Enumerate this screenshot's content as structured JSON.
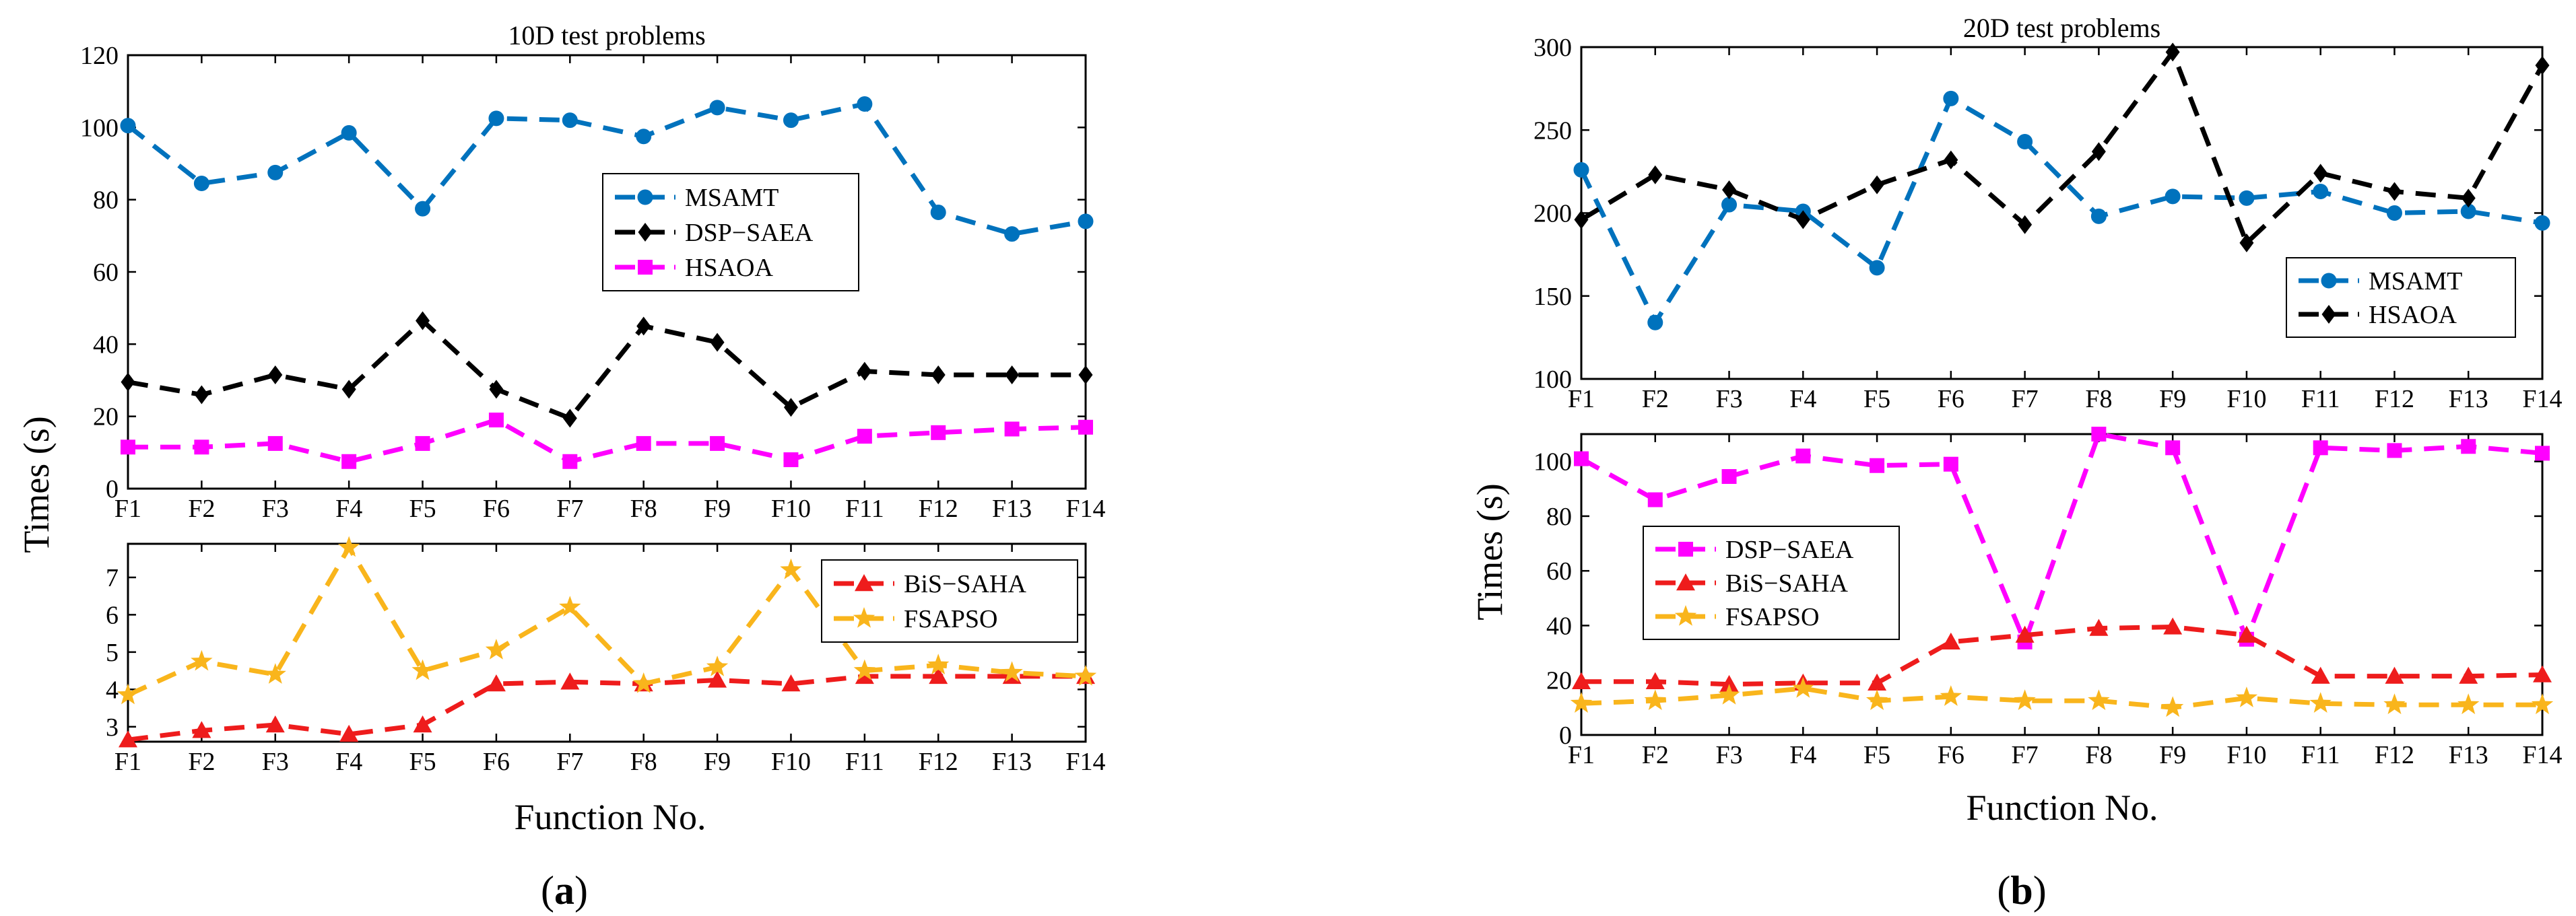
{
  "figure": {
    "shared_categories": [
      "F1",
      "F2",
      "F3",
      "F4",
      "F5",
      "F6",
      "F7",
      "F8",
      "F9",
      "F10",
      "F11",
      "F12",
      "F13",
      "F14"
    ],
    "panel_a": {
      "letter_open": "(",
      "letter": "a",
      "letter_close": ")",
      "ylabel": "Times (s)",
      "xlabel": "Function No."
    },
    "panel_b": {
      "letter_open": "(",
      "letter": "b",
      "letter_close": ")",
      "ylabel": "Times (s)",
      "xlabel": "Function No."
    }
  },
  "chart_data": [
    {
      "id": "a_top",
      "type": "line",
      "title": "10D test problems",
      "categories": [
        "F1",
        "F2",
        "F3",
        "F4",
        "F5",
        "F6",
        "F7",
        "F8",
        "F9",
        "F10",
        "F11",
        "F12",
        "F13",
        "F14"
      ],
      "ylim": [
        0,
        120
      ],
      "yticks": [
        0,
        20,
        40,
        60,
        80,
        100,
        120
      ],
      "legend_position": "center-right",
      "series": [
        {
          "name": "MSAMT",
          "color": "#0072BD",
          "marker": "circle",
          "values": [
            100.5,
            84.5,
            87.5,
            98.5,
            77.5,
            102.5,
            102,
            97.5,
            105.5,
            102,
            106.5,
            76.5,
            70.5,
            74
          ]
        },
        {
          "name": "DSP−SAEA",
          "color": "#000000",
          "marker": "diamond",
          "values": [
            29.5,
            26,
            31.5,
            27.5,
            46.5,
            27.5,
            19.5,
            45,
            40.5,
            22.5,
            32.5,
            31.5,
            31.5,
            31.5
          ]
        },
        {
          "name": "HSAOA",
          "color": "#FF00FF",
          "marker": "square",
          "values": [
            11.5,
            11.5,
            12.5,
            7.5,
            12.5,
            19,
            7.5,
            12.5,
            12.5,
            8,
            14.5,
            15.5,
            16.5,
            17
          ]
        }
      ]
    },
    {
      "id": "a_bottom",
      "type": "line",
      "title": "",
      "categories": [
        "F1",
        "F2",
        "F3",
        "F4",
        "F5",
        "F6",
        "F7",
        "F8",
        "F9",
        "F10",
        "F11",
        "F12",
        "F13",
        "F14"
      ],
      "ylim": [
        2.6,
        7.9
      ],
      "yticks": [
        3,
        4,
        5,
        6,
        7
      ],
      "legend_position": "top-right",
      "series": [
        {
          "name": "BiS−SAHA",
          "color": "#EE1C1C",
          "marker": "triangle",
          "values": [
            2.65,
            2.9,
            3.05,
            2.8,
            3.05,
            4.15,
            4.2,
            4.15,
            4.25,
            4.15,
            4.35,
            4.35,
            4.35,
            4.35
          ]
        },
        {
          "name": "FSAPSO",
          "color": "#F9B51C",
          "marker": "star",
          "values": [
            3.85,
            4.75,
            4.4,
            7.8,
            4.5,
            5.05,
            6.2,
            4.15,
            4.6,
            7.2,
            4.5,
            4.65,
            4.45,
            4.35
          ]
        }
      ]
    },
    {
      "id": "b_top",
      "type": "line",
      "title": "20D test problems",
      "categories": [
        "F1",
        "F2",
        "F3",
        "F4",
        "F5",
        "F6",
        "F7",
        "F8",
        "F9",
        "F10",
        "F11",
        "F12",
        "F13",
        "F14"
      ],
      "ylim": [
        100,
        300
      ],
      "yticks": [
        100,
        150,
        200,
        250,
        300
      ],
      "legend_position": "bottom-right",
      "series": [
        {
          "name": "MSAMT",
          "color": "#0072BD",
          "marker": "circle",
          "values": [
            226,
            134,
            205,
            201,
            167,
            269,
            243,
            198,
            210,
            209,
            213,
            200,
            201,
            194
          ]
        },
        {
          "name": "HSAOA",
          "color": "#000000",
          "marker": "diamond",
          "values": [
            196,
            223,
            214,
            196,
            217,
            232,
            193,
            237,
            297,
            182,
            224,
            213,
            209,
            289
          ]
        }
      ]
    },
    {
      "id": "b_bottom",
      "type": "line",
      "title": "",
      "categories": [
        "F1",
        "F2",
        "F3",
        "F4",
        "F5",
        "F6",
        "F7",
        "F8",
        "F9",
        "F10",
        "F11",
        "F12",
        "F13",
        "F14"
      ],
      "ylim": [
        0,
        110
      ],
      "yticks": [
        0,
        20,
        40,
        60,
        80,
        100
      ],
      "legend_position": "center-left",
      "series": [
        {
          "name": "DSP−SAEA",
          "color": "#FF00FF",
          "marker": "square",
          "values": [
            101,
            86,
            94.5,
            102,
            98.5,
            99,
            34,
            110,
            105,
            35,
            105,
            104,
            105.5,
            103
          ]
        },
        {
          "name": "BiS−SAHA",
          "color": "#EE1C1C",
          "marker": "triangle",
          "values": [
            19.5,
            19.5,
            18.5,
            19,
            19,
            34,
            36.5,
            39,
            39.5,
            36.5,
            21.5,
            21.5,
            21.5,
            22
          ]
        },
        {
          "name": "FSAPSO",
          "color": "#F9B51C",
          "marker": "star",
          "values": [
            11.5,
            12.5,
            14.5,
            17,
            12.5,
            14,
            12.5,
            12.5,
            10,
            13.5,
            11.5,
            11,
            11,
            11
          ]
        }
      ]
    }
  ]
}
